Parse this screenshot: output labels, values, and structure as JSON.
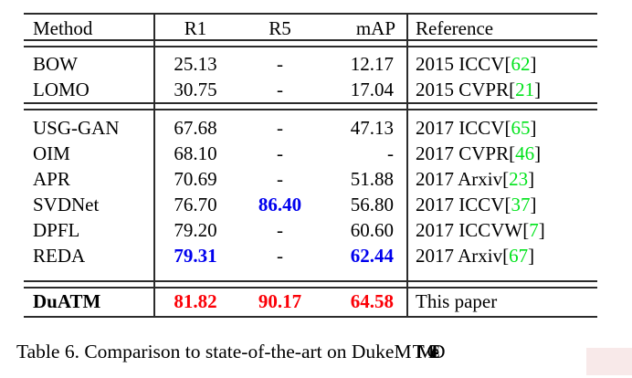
{
  "colors": {
    "rule": "#2b2b2b",
    "text": "#000000",
    "best_value_red": "#fb0007",
    "second_best_blue": "#0000ee",
    "citation_green": "#00e31b",
    "corner_highlight_pink": "#f3d7d7"
  },
  "table": {
    "columns": [
      {
        "key": "method",
        "label": "Method"
      },
      {
        "key": "r1",
        "label": "R1"
      },
      {
        "key": "r5",
        "label": "R5"
      },
      {
        "key": "map",
        "label": "mAP"
      },
      {
        "key": "ref",
        "label": "Reference"
      }
    ],
    "sections": [
      {
        "rows": [
          {
            "method": "BOW",
            "method_bold": false,
            "r1": {
              "v": "25.13",
              "s": "plain"
            },
            "r5": {
              "v": "-",
              "s": "plain"
            },
            "map": {
              "v": "12.17",
              "s": "plain"
            },
            "reference": {
              "text": "2015 ICCV",
              "cite": "62"
            }
          },
          {
            "method": "LOMO",
            "method_bold": false,
            "r1": {
              "v": "30.75",
              "s": "plain"
            },
            "r5": {
              "v": "-",
              "s": "plain"
            },
            "map": {
              "v": "17.04",
              "s": "plain"
            },
            "reference": {
              "text": "2015 CVPR",
              "cite": "21"
            }
          }
        ]
      },
      {
        "rows": [
          {
            "method": "USG-GAN",
            "method_bold": false,
            "r1": {
              "v": "67.68",
              "s": "plain"
            },
            "r5": {
              "v": "-",
              "s": "plain"
            },
            "map": {
              "v": "47.13",
              "s": "plain"
            },
            "reference": {
              "text": "2017 ICCV",
              "cite": "65"
            }
          },
          {
            "method": "OIM",
            "method_bold": false,
            "r1": {
              "v": "68.10",
              "s": "plain"
            },
            "r5": {
              "v": "-",
              "s": "plain"
            },
            "map": {
              "v": "-",
              "s": "plain"
            },
            "reference": {
              "text": "2017 CVPR",
              "cite": "46"
            }
          },
          {
            "method": "APR",
            "method_bold": false,
            "r1": {
              "v": "70.69",
              "s": "plain"
            },
            "r5": {
              "v": "-",
              "s": "plain"
            },
            "map": {
              "v": "51.88",
              "s": "plain"
            },
            "reference": {
              "text": "2017 Arxiv",
              "cite": "23"
            }
          },
          {
            "method": "SVDNet",
            "method_bold": false,
            "r1": {
              "v": "76.70",
              "s": "plain"
            },
            "r5": {
              "v": "86.40",
              "s": "blue"
            },
            "map": {
              "v": "56.80",
              "s": "plain"
            },
            "reference": {
              "text": "2017 ICCV",
              "cite": "37"
            }
          },
          {
            "method": "DPFL",
            "method_bold": false,
            "r1": {
              "v": "79.20",
              "s": "plain"
            },
            "r5": {
              "v": "-",
              "s": "plain"
            },
            "map": {
              "v": "60.60",
              "s": "plain"
            },
            "reference": {
              "text": "2017 ICCVW",
              "cite": "7"
            }
          },
          {
            "method": "REDA",
            "method_bold": false,
            "r1": {
              "v": "79.31",
              "s": "blue"
            },
            "r5": {
              "v": "-",
              "s": "plain"
            },
            "map": {
              "v": "62.44",
              "s": "blue"
            },
            "reference": {
              "text": "2017 Arxiv",
              "cite": "67"
            }
          }
        ]
      },
      {
        "rows": [
          {
            "method": "DuATM",
            "method_bold": true,
            "r1": {
              "v": "81.82",
              "s": "red"
            },
            "r5": {
              "v": "90.17",
              "s": "red"
            },
            "map": {
              "v": "64.58",
              "s": "red"
            },
            "reference": {
              "text": "This paper",
              "cite": null
            }
          }
        ]
      }
    ]
  },
  "caption": {
    "text": "Table 6. Comparison to state-of-the-art on DukeM",
    "garbled_tail": "TMC-reID"
  }
}
